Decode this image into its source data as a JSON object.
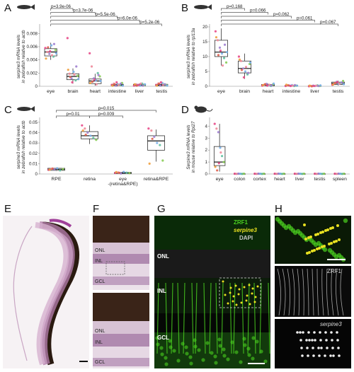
{
  "colors": {
    "dots": [
      "#e84b8a",
      "#f08a9a",
      "#a07fd0",
      "#7ab0e8",
      "#5fc0a0",
      "#88cc55",
      "#f0a040",
      "#e06050"
    ],
    "zrf1": "#4ad020",
    "serpine3": "#e8e020",
    "dapi": "#c8c8c8"
  },
  "panels": {
    "A": {
      "letter": "A",
      "icon": "zebrafish-icon"
    },
    "B": {
      "letter": "B",
      "icon": "zebrafish-icon"
    },
    "C": {
      "letter": "C",
      "icon": "zebrafish-icon"
    },
    "D": {
      "letter": "D",
      "icon": "mouse-icon"
    },
    "E": {
      "letter": "E"
    },
    "F": {
      "letter": "F",
      "layers": [
        "ONL",
        "INL",
        "GCL"
      ]
    },
    "G": {
      "letter": "G",
      "legend": [
        "ZRF1",
        "serpine3",
        "DAPI"
      ],
      "layers": [
        "ONL",
        "INL",
        "GCL"
      ]
    },
    "H": {
      "letter": "H",
      "labels": [
        "ZRF1",
        "serpine3"
      ]
    }
  },
  "chart_data": [
    {
      "id": "A",
      "type": "box",
      "ylabel": [
        "serpine3 mRNA levels",
        "in zebrafish relative to actb"
      ],
      "ylim": [
        0,
        0.009
      ],
      "yticks": [
        0,
        0.002,
        0.004,
        0.006,
        0.008
      ],
      "ytick_labels": [
        "0",
        "0.002",
        "0.004",
        "0.006",
        "0.008"
      ],
      "categories": [
        "eye",
        "brain",
        "heart",
        "intestine",
        "liver",
        "testis"
      ],
      "boxes": [
        {
          "q1": 0.0046,
          "med": 0.0052,
          "q3": 0.0057,
          "lo": 0.004,
          "hi": 0.0066
        },
        {
          "q1": 0.001,
          "med": 0.0015,
          "q3": 0.0019,
          "lo": 0.0004,
          "hi": 0.0027
        },
        {
          "q1": 0.0004,
          "med": 0.0008,
          "q3": 0.0011,
          "lo": 0.0001,
          "hi": 0.0019
        },
        {
          "q1": 0.0001,
          "med": 0.0002,
          "q3": 0.0003,
          "lo": 0.0,
          "hi": 0.0005
        },
        {
          "q1": 0.0001,
          "med": 0.0002,
          "q3": 0.0003,
          "lo": 0.0,
          "hi": 0.0004
        },
        {
          "q1": 0.0001,
          "med": 0.0002,
          "q3": 0.0003,
          "lo": 0.0,
          "hi": 0.0005
        }
      ],
      "points": [
        [
          0.0058,
          0.0052,
          0.0049,
          0.0062,
          0.0045,
          0.0055,
          0.0042,
          0.0059,
          0.0053,
          0.0047,
          0.0064,
          0.005
        ],
        [
          0.0073,
          0.0019,
          0.0012,
          0.0022,
          0.0009,
          0.0016,
          0.0025,
          0.0014,
          0.0006,
          0.0018,
          0.003,
          0.0011
        ],
        [
          0.005,
          0.003,
          0.0012,
          0.0009,
          0.002,
          0.0015,
          0.0005,
          0.0007,
          0.001,
          0.0003,
          0.0017,
          0.0008
        ],
        [
          0.0002,
          0.0004,
          0.0001,
          0.0003,
          0.0002,
          0.0005,
          0.0001,
          0.0003,
          0.0006,
          0.0002,
          0.0004,
          0.0001
        ],
        [
          0.0001,
          0.0003,
          0.0002,
          0.0001,
          0.0004,
          0.0002,
          0.0003,
          0.0001,
          0.0002,
          0.0004,
          0.0001,
          0.0003
        ],
        [
          0.0002,
          0.0004,
          0.0001,
          0.0005,
          0.0003,
          0.0002,
          0.0001,
          0.0004,
          0.0006,
          0.0002,
          0.0003,
          0.0001
        ]
      ],
      "pvalues": [
        {
          "label": "p=3.9e-06",
          "to": 1
        },
        {
          "label": "p=3.7e-06",
          "to": 2
        },
        {
          "label": "p=5.5e-06",
          "to": 3
        },
        {
          "label": "p=6.0e-06",
          "to": 4
        },
        {
          "label": "p=5.2e-06",
          "to": 5
        }
      ]
    },
    {
      "id": "B",
      "type": "box",
      "ylabel": [
        "serpine3 mRNA levels",
        "in zebrafish relative to rpl13a"
      ],
      "ylim": [
        0,
        20
      ],
      "yticks": [
        0,
        5,
        10,
        15,
        20
      ],
      "ytick_labels": [
        "0",
        "5",
        "10",
        "15",
        "20"
      ],
      "categories": [
        "eye",
        "brain",
        "heart",
        "intestine",
        "liver",
        "testis"
      ],
      "boxes": [
        {
          "q1": 10.0,
          "med": 11.5,
          "q3": 15.5,
          "lo": 7.0,
          "hi": 19.5
        },
        {
          "q1": 4.5,
          "med": 6.0,
          "q3": 8.5,
          "lo": 2.5,
          "hi": 11.0
        },
        {
          "q1": 0.2,
          "med": 0.4,
          "q3": 0.6,
          "lo": 0.0,
          "hi": 0.9
        },
        {
          "q1": 0.1,
          "med": 0.2,
          "q3": 0.3,
          "lo": 0.0,
          "hi": 0.5
        },
        {
          "q1": 0.0,
          "med": 0.1,
          "q3": 0.2,
          "lo": 0.0,
          "hi": 0.3
        },
        {
          "q1": 0.6,
          "med": 1.0,
          "q3": 1.4,
          "lo": 0.3,
          "hi": 1.9
        }
      ],
      "points": [
        [
          18.5,
          15.5,
          13.0,
          11.0,
          9.5,
          8.0,
          16.5,
          10.5,
          12.0,
          7.0,
          14.0,
          11.5
        ],
        [
          10.0,
          8.5,
          6.0,
          5.0,
          4.0,
          7.5,
          9.0,
          5.5,
          3.0,
          6.5,
          4.5,
          8.0
        ],
        [
          0.2,
          0.5,
          0.8,
          0.3,
          0.1,
          0.6,
          0.4,
          0.7,
          0.2,
          0.5,
          0.3,
          0.9
        ],
        [
          0.1,
          0.3,
          0.2,
          0.4,
          0.1,
          0.2,
          0.5,
          0.3,
          0.1,
          0.2,
          0.4,
          0.2
        ],
        [
          0.0,
          0.1,
          0.2,
          0.1,
          0.3,
          0.1,
          0.2,
          0.0,
          0.1,
          0.2,
          0.1,
          0.3
        ],
        [
          0.5,
          1.0,
          1.5,
          0.8,
          1.2,
          1.8,
          0.6,
          1.1,
          1.4,
          0.9,
          1.3,
          0.7
        ]
      ],
      "pvalues": [
        {
          "label": "p=0.168",
          "to": 1
        },
        {
          "label": "p=0.066",
          "to": 2
        },
        {
          "label": "p=0.062",
          "to": 3
        },
        {
          "label": "p=0.061",
          "to": 4
        },
        {
          "label": "p=0.067",
          "to": 5
        }
      ]
    },
    {
      "id": "C",
      "type": "box",
      "ylabel": [
        "serpine3 mRNA levels",
        "in zebrafish relative to actb"
      ],
      "ylim": [
        0,
        0.052
      ],
      "yticks": [
        0,
        0.01,
        0.02,
        0.03,
        0.04,
        0.05
      ],
      "ytick_labels": [
        "0",
        "0.01",
        "0.02",
        "0.03",
        "0.04",
        "0.05"
      ],
      "categories": [
        "RPE",
        "retina",
        "eye\n-(retina&RPE)",
        "retina&RPE"
      ],
      "boxes": [
        {
          "q1": 0.0035,
          "med": 0.0045,
          "q3": 0.0055,
          "lo": 0.003,
          "hi": 0.006
        },
        {
          "q1": 0.034,
          "med": 0.037,
          "q3": 0.041,
          "lo": 0.029,
          "hi": 0.047
        },
        {
          "q1": 0.0005,
          "med": 0.001,
          "q3": 0.0015,
          "lo": 0.0,
          "hi": 0.0025
        },
        {
          "q1": 0.023,
          "med": 0.032,
          "q3": 0.037,
          "lo": 0.012,
          "hi": 0.043
        }
      ],
      "points": [
        [
          0.004,
          0.005,
          0.0045,
          0.0055,
          0.0035,
          0.0048,
          0.0042,
          0.0052
        ],
        [
          0.047,
          0.044,
          0.04,
          0.037,
          0.035,
          0.033,
          0.042,
          0.038
        ],
        [
          0.001,
          0.0015,
          0.0005,
          0.002,
          0.0012,
          0.0008,
          0.0018,
          0.0011
        ],
        [
          0.044,
          0.042,
          0.036,
          0.03,
          0.028,
          0.013,
          0.01,
          0.034
        ]
      ],
      "pvalues": [
        {
          "label": "p=0.015",
          "from": 0,
          "to": 3,
          "row": 0
        },
        {
          "label": "p=0.01",
          "from": 0,
          "to": 1,
          "row": 1
        },
        {
          "label": "p=0.009",
          "from": 1,
          "to": 2,
          "row": 1
        }
      ]
    },
    {
      "id": "D",
      "type": "box",
      "ylabel": [
        "Serpine3 mRNA levels",
        "in mouse relative to Rpl27"
      ],
      "ylim": [
        0,
        4.5
      ],
      "yticks": [
        0,
        1,
        2,
        3,
        4
      ],
      "ytick_labels": [
        "0",
        "1",
        "2",
        "3",
        "4"
      ],
      "categories": [
        "eye",
        "colon",
        "cortex",
        "heart",
        "liver",
        "testis",
        "spleen"
      ],
      "boxes": [
        {
          "q1": 0.7,
          "med": 1.0,
          "q3": 2.3,
          "lo": 0.2,
          "hi": 4.2
        },
        {
          "q1": 0.0,
          "med": 0.01,
          "q3": 0.02,
          "lo": 0.0,
          "hi": 0.04
        },
        {
          "q1": 0.0,
          "med": 0.01,
          "q3": 0.02,
          "lo": 0.0,
          "hi": 0.04
        },
        {
          "q1": 0.0,
          "med": 0.01,
          "q3": 0.02,
          "lo": 0.0,
          "hi": 0.04
        },
        {
          "q1": 0.0,
          "med": 0.01,
          "q3": 0.02,
          "lo": 0.0,
          "hi": 0.04
        },
        {
          "q1": 0.0,
          "med": 0.01,
          "q3": 0.02,
          "lo": 0.0,
          "hi": 0.04
        },
        {
          "q1": 0.0,
          "med": 0.01,
          "q3": 0.02,
          "lo": 0.0,
          "hi": 0.04
        }
      ],
      "points": [
        [
          4.2,
          3.8,
          3.5,
          2.2,
          1.5,
          1.0,
          0.6,
          0.3,
          0.9,
          1.8
        ],
        [
          0.02,
          0.01,
          0.03,
          0.02,
          0.01,
          0.02
        ],
        [
          0.02,
          0.01,
          0.03,
          0.02,
          0.01,
          0.02
        ],
        [
          0.02,
          0.01,
          0.03,
          0.02,
          0.01,
          0.02
        ],
        [
          0.02,
          0.01,
          0.03,
          0.02,
          0.01,
          0.02
        ],
        [
          0.02,
          0.01,
          0.03,
          0.02,
          0.01,
          0.02
        ],
        [
          0.02,
          0.01,
          0.03,
          0.02,
          0.01,
          0.02
        ]
      ],
      "pvalues": []
    }
  ]
}
